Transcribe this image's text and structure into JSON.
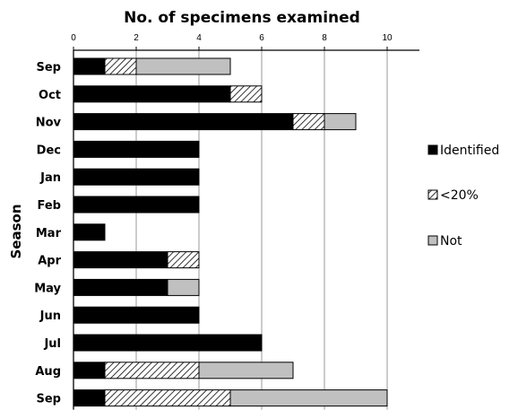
{
  "chart_data": {
    "type": "bar",
    "orientation": "horizontal",
    "stacked": true,
    "title": "No. of specimens examined",
    "xlabel": "",
    "ylabel": "Season",
    "xlim": [
      0,
      11
    ],
    "xticks": [
      0,
      2,
      4,
      6,
      8,
      10
    ],
    "grid": true,
    "legend_position": "right",
    "categories": [
      "Sep",
      "Oct",
      "Nov",
      "Dec",
      "Jan",
      "Feb",
      "Mar",
      "Apr",
      "May",
      "Jun",
      "Jul",
      "Aug",
      "Sep"
    ],
    "series": [
      {
        "name": "Identified",
        "color": "#000000",
        "pattern": "solid",
        "values": [
          1,
          5,
          7,
          4,
          4,
          4,
          1,
          3,
          3,
          4,
          6,
          1,
          1
        ]
      },
      {
        "name": "<20%",
        "color": "#ffffff",
        "pattern": "diagonal-hatch",
        "values": [
          1,
          1,
          1,
          0,
          0,
          0,
          0,
          1,
          0,
          0,
          0,
          3,
          4
        ]
      },
      {
        "name": "Not",
        "color": "#c0c0c0",
        "pattern": "solid",
        "values": [
          3,
          0,
          1,
          0,
          0,
          0,
          0,
          0,
          1,
          0,
          0,
          3,
          5
        ]
      }
    ]
  }
}
